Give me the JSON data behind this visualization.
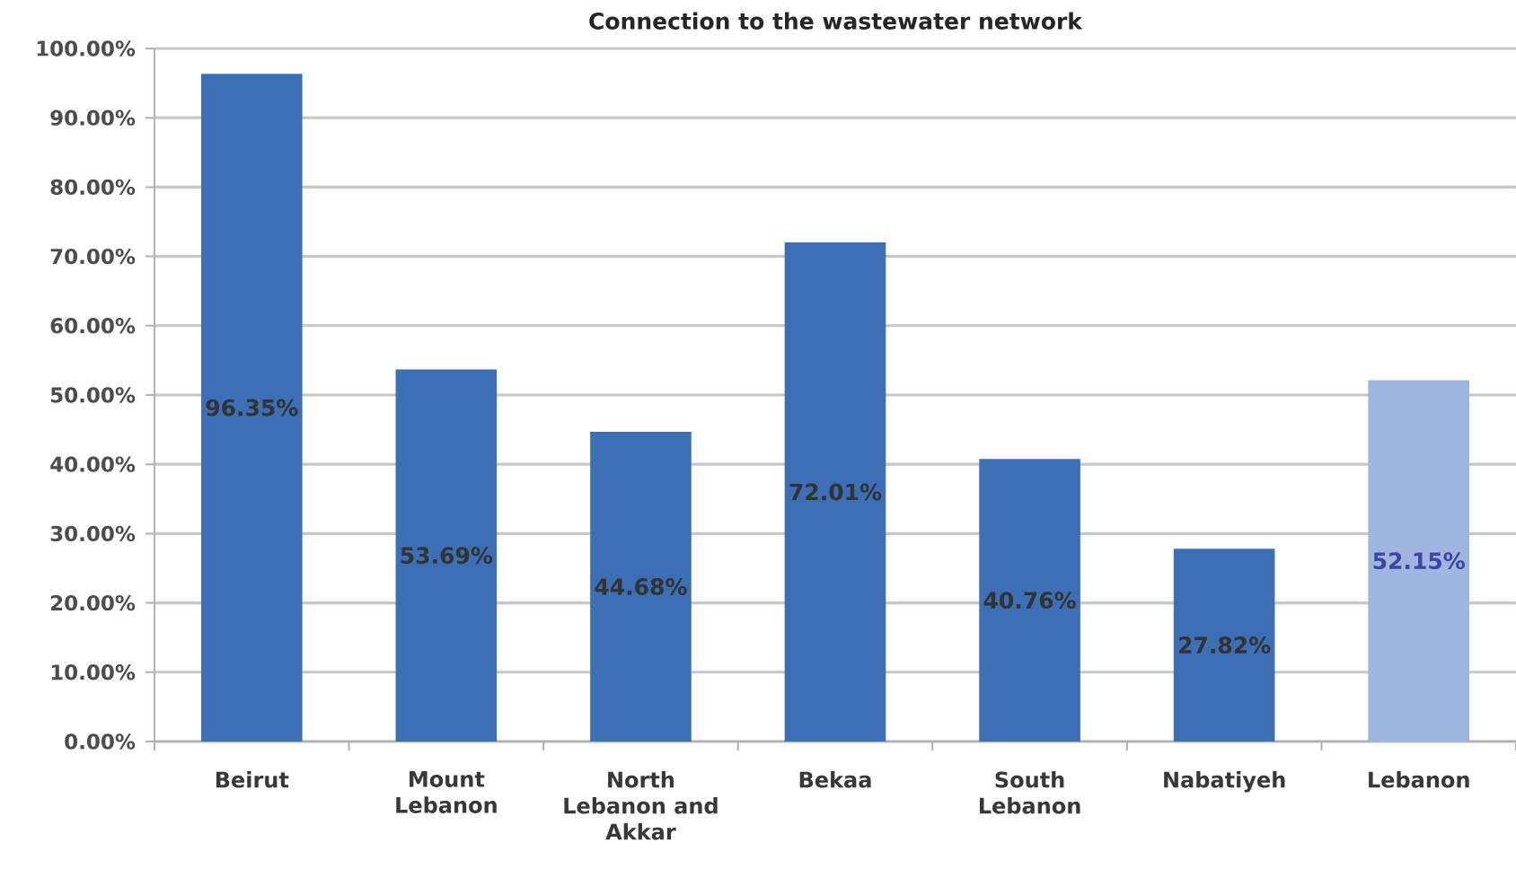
{
  "chart_data": {
    "type": "bar",
    "title": "Connection to the wastewater network",
    "categories": [
      "Beirut",
      "Mount Lebanon",
      "North Lebanon and Akkar",
      "Bekaa",
      "South Lebanon",
      "Nabatiyeh",
      "Lebanon"
    ],
    "values": [
      96.35,
      53.69,
      44.68,
      72.01,
      40.76,
      27.82,
      52.15
    ],
    "colors": [
      "#3c6fb6",
      "#3c6fb6",
      "#3c6fb6",
      "#3c6fb6",
      "#3c6fb6",
      "#3c6fb6",
      "#9fb6de"
    ],
    "value_labels": [
      "96.35%",
      "53.69%",
      "44.68%",
      "72.01%",
      "40.76%",
      "27.82%",
      "52.15%"
    ],
    "ylim": [
      0,
      100
    ],
    "yticks": [
      {
        "value": 0,
        "label": "0.00%"
      },
      {
        "value": 10,
        "label": "10.00%"
      },
      {
        "value": 20,
        "label": "20.00%"
      },
      {
        "value": 30,
        "label": "30.00%"
      },
      {
        "value": 40,
        "label": "40.00%"
      },
      {
        "value": 50,
        "label": "50.00%"
      },
      {
        "value": 60,
        "label": "60.00%"
      },
      {
        "value": 70,
        "label": "70.00%"
      },
      {
        "value": 80,
        "label": "80.00%"
      },
      {
        "value": 90,
        "label": "90.00%"
      },
      {
        "value": 100,
        "label": "100.00%"
      }
    ],
    "grid": "y"
  }
}
